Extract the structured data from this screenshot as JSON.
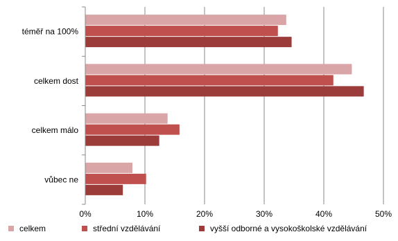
{
  "chart_data": {
    "type": "bar",
    "orientation": "horizontal",
    "title": "",
    "xlabel": "",
    "ylabel": "",
    "categories": [
      "téměř na 100%",
      "celkem dost",
      "celkem málo",
      "vůbec ne"
    ],
    "series": [
      {
        "name": "celkem",
        "color": "#d9a5a6",
        "values": [
          33.7,
          44.7,
          13.8,
          7.9
        ]
      },
      {
        "name": "střední vzdělávání",
        "color": "#c0504d",
        "values": [
          32.3,
          41.6,
          15.8,
          10.2
        ]
      },
      {
        "name": "vyšší odborné a vysokoškolské vzdělávání",
        "color": "#9b3b3a",
        "values": [
          34.6,
          46.7,
          12.4,
          6.3
        ]
      }
    ],
    "xlim": [
      0,
      50
    ],
    "xticks": [
      0,
      10,
      20,
      30,
      40,
      50
    ],
    "xtick_labels": [
      "0%",
      "10%",
      "20%",
      "30%",
      "40%",
      "50%"
    ],
    "grid": "vertical",
    "legend_position": "bottom"
  }
}
